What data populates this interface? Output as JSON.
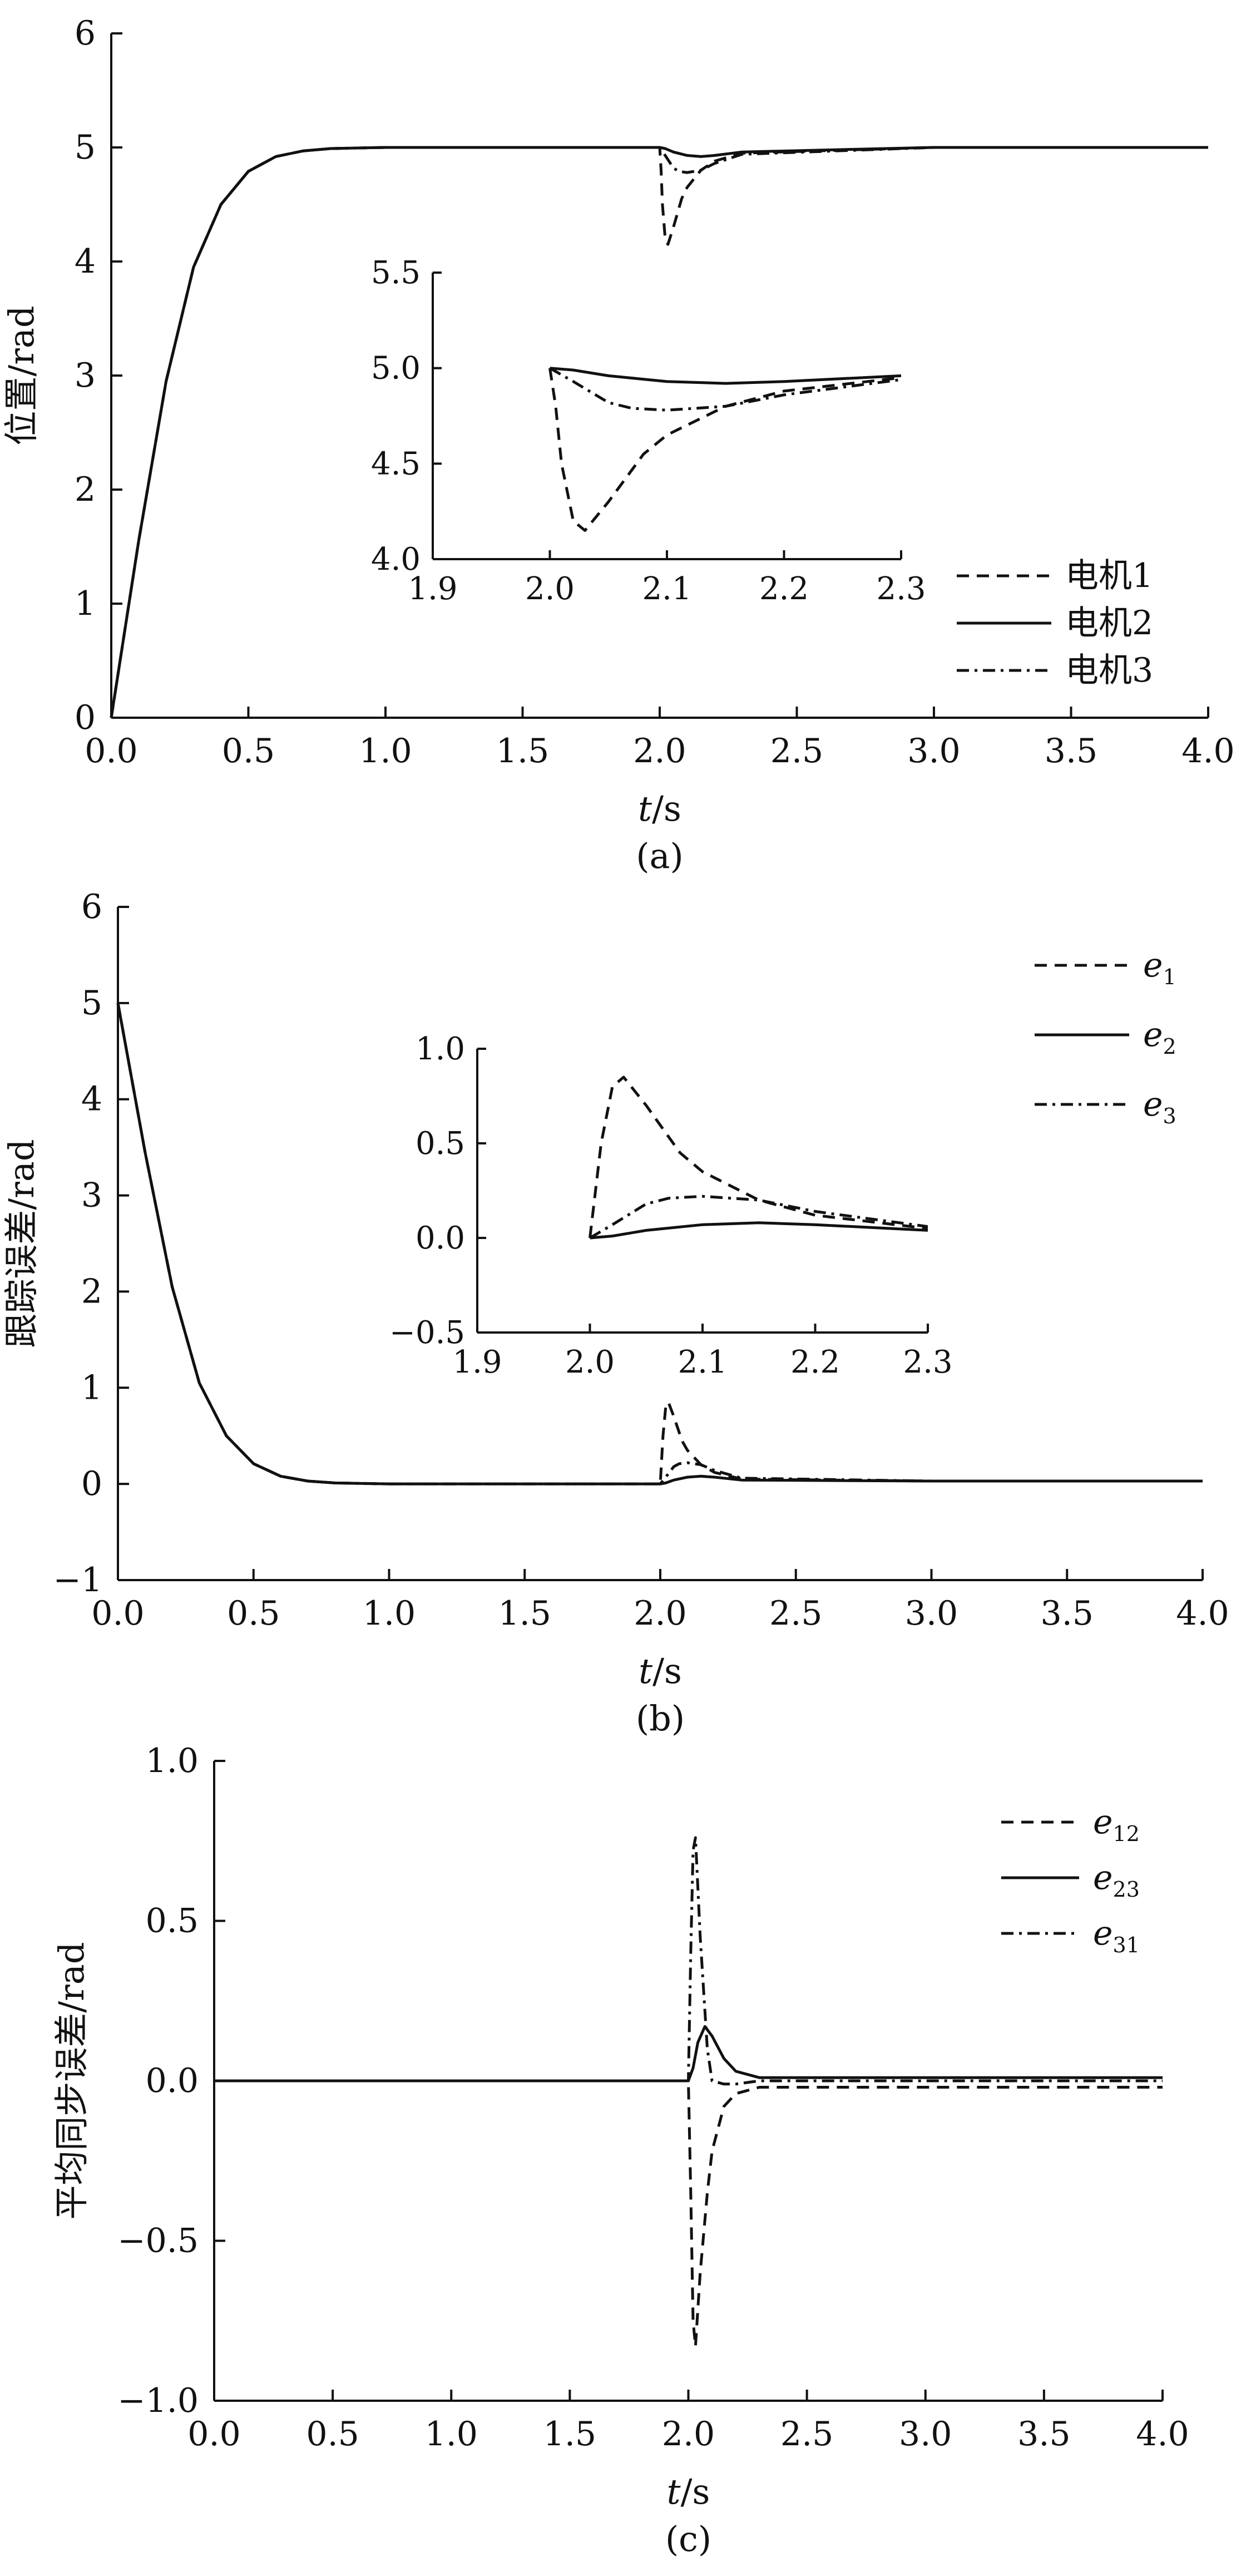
{
  "chart_data": [
    {
      "type": "line",
      "caption": "(a)",
      "xlabel_italic": "t",
      "xlabel_rest": "/s",
      "ylabel": "位置/rad",
      "xlim": [
        0,
        4
      ],
      "ylim": [
        0,
        6
      ],
      "xticks": [
        "0.0",
        "0.5",
        "1.0",
        "1.5",
        "2.0",
        "2.5",
        "3.0",
        "3.5",
        "4.0"
      ],
      "yticks": [
        "0",
        "1",
        "2",
        "3",
        "4",
        "5",
        "6"
      ],
      "legend_position": "right",
      "series": [
        {
          "name": "电机1",
          "style": "dashed",
          "x": [
            0,
            0.1,
            0.2,
            0.3,
            0.4,
            0.5,
            0.6,
            0.7,
            0.8,
            1.0,
            1.5,
            2.0,
            2.005,
            2.01,
            2.02,
            2.03,
            2.05,
            2.08,
            2.1,
            2.15,
            2.2,
            2.3,
            3.0,
            4.0
          ],
          "y": [
            0,
            1.55,
            2.95,
            3.95,
            4.5,
            4.79,
            4.92,
            4.97,
            4.99,
            5.0,
            5.0,
            5.0,
            4.8,
            4.5,
            4.2,
            4.15,
            4.3,
            4.55,
            4.65,
            4.8,
            4.88,
            4.95,
            5.0,
            5.0
          ]
        },
        {
          "name": "电机2",
          "style": "solid",
          "x": [
            0,
            0.1,
            0.2,
            0.3,
            0.4,
            0.5,
            0.6,
            0.7,
            0.8,
            1.0,
            1.5,
            2.0,
            2.02,
            2.05,
            2.1,
            2.15,
            2.2,
            2.3,
            3.0,
            4.0
          ],
          "y": [
            0,
            1.55,
            2.95,
            3.95,
            4.5,
            4.79,
            4.92,
            4.97,
            4.99,
            5.0,
            5.0,
            5.0,
            4.99,
            4.96,
            4.93,
            4.92,
            4.93,
            4.96,
            5.0,
            5.0
          ]
        },
        {
          "name": "电机3",
          "style": "dashdot",
          "x": [
            0,
            0.1,
            0.2,
            0.3,
            0.4,
            0.5,
            0.6,
            0.7,
            0.8,
            1.0,
            1.5,
            2.0,
            2.02,
            2.05,
            2.07,
            2.1,
            2.15,
            2.2,
            2.3,
            3.0,
            4.0
          ],
          "y": [
            0,
            1.55,
            2.95,
            3.95,
            4.5,
            4.79,
            4.92,
            4.97,
            4.99,
            5.0,
            5.0,
            5.0,
            4.93,
            4.82,
            4.79,
            4.78,
            4.8,
            4.86,
            4.94,
            5.0,
            5.0
          ]
        }
      ],
      "inset": {
        "xlim": [
          1.9,
          2.3
        ],
        "ylim": [
          4.0,
          5.5
        ],
        "xticks": [
          "1.9",
          "2.0",
          "2.1",
          "2.2",
          "2.3"
        ],
        "yticks": [
          "4.0",
          "4.5",
          "5.0",
          "5.5"
        ]
      }
    },
    {
      "type": "line",
      "caption": "(b)",
      "xlabel_italic": "t",
      "xlabel_rest": "/s",
      "ylabel": "跟踪误差/rad",
      "xlim": [
        0,
        4
      ],
      "ylim": [
        -1,
        6
      ],
      "xticks": [
        "0.0",
        "0.5",
        "1.0",
        "1.5",
        "2.0",
        "2.5",
        "3.0",
        "3.5",
        "4.0"
      ],
      "yticks": [
        "−1",
        "0",
        "1",
        "2",
        "3",
        "4",
        "5",
        "6"
      ],
      "legend_position": "top-right",
      "series": [
        {
          "name": "e",
          "sub": "1",
          "style": "dashed",
          "x": [
            0,
            0.1,
            0.2,
            0.3,
            0.4,
            0.5,
            0.6,
            0.7,
            0.8,
            1.0,
            1.5,
            2.0,
            2.01,
            2.02,
            2.03,
            2.05,
            2.08,
            2.1,
            2.15,
            2.2,
            2.3,
            3.0,
            4.0
          ],
          "y": [
            5,
            3.45,
            2.05,
            1.05,
            0.5,
            0.21,
            0.08,
            0.03,
            0.01,
            0,
            0,
            0,
            0.5,
            0.8,
            0.85,
            0.7,
            0.45,
            0.35,
            0.2,
            0.12,
            0.05,
            0.03,
            0.03
          ]
        },
        {
          "name": "e",
          "sub": "2",
          "style": "solid",
          "x": [
            0,
            0.1,
            0.2,
            0.3,
            0.4,
            0.5,
            0.6,
            0.7,
            0.8,
            1.0,
            1.5,
            2.0,
            2.02,
            2.05,
            2.1,
            2.15,
            2.2,
            2.3,
            3.0,
            4.0
          ],
          "y": [
            5,
            3.45,
            2.05,
            1.05,
            0.5,
            0.21,
            0.08,
            0.03,
            0.01,
            0,
            0,
            0,
            0.01,
            0.04,
            0.07,
            0.08,
            0.07,
            0.04,
            0.03,
            0.03
          ]
        },
        {
          "name": "e",
          "sub": "3",
          "style": "dashdot",
          "x": [
            0,
            0.1,
            0.2,
            0.3,
            0.4,
            0.5,
            0.6,
            0.7,
            0.8,
            1.0,
            1.5,
            2.0,
            2.02,
            2.05,
            2.07,
            2.1,
            2.15,
            2.2,
            2.3,
            3.0,
            4.0
          ],
          "y": [
            5,
            3.45,
            2.05,
            1.05,
            0.5,
            0.21,
            0.08,
            0.03,
            0.01,
            0,
            0,
            0,
            0.07,
            0.18,
            0.21,
            0.22,
            0.2,
            0.14,
            0.06,
            0.03,
            0.03
          ]
        }
      ],
      "inset": {
        "xlim": [
          1.9,
          2.3
        ],
        "ylim": [
          -0.5,
          1.0
        ],
        "xticks": [
          "1.9",
          "2.0",
          "2.1",
          "2.2",
          "2.3"
        ],
        "yticks": [
          "−0.5",
          "0.0",
          "0.5",
          "1.0"
        ]
      }
    },
    {
      "type": "line",
      "caption": "(c)",
      "xlabel_italic": "t",
      "xlabel_rest": "/s",
      "ylabel": "平均同步误差/rad",
      "xlim": [
        0,
        4
      ],
      "ylim": [
        -1,
        1
      ],
      "xticks": [
        "0.0",
        "0.5",
        "1.0",
        "1.5",
        "2.0",
        "2.5",
        "3.0",
        "3.5",
        "4.0"
      ],
      "yticks": [
        "−1.0",
        "−0.5",
        "0.0",
        "0.5",
        "1.0"
      ],
      "legend_position": "top-right",
      "series": [
        {
          "name": "e",
          "sub": "12",
          "style": "dashed",
          "x": [
            0,
            2.0,
            2.01,
            2.02,
            2.03,
            2.05,
            2.08,
            2.1,
            2.15,
            2.2,
            2.3,
            2.5,
            3.0,
            4.0
          ],
          "y": [
            0,
            0,
            -0.35,
            -0.75,
            -0.83,
            -0.6,
            -0.35,
            -0.22,
            -0.08,
            -0.04,
            -0.02,
            -0.02,
            -0.02,
            -0.02
          ]
        },
        {
          "name": "e",
          "sub": "23",
          "style": "solid",
          "x": [
            0,
            2.0,
            2.02,
            2.04,
            2.07,
            2.1,
            2.15,
            2.2,
            2.3,
            2.5,
            3.0,
            4.0
          ],
          "y": [
            0,
            0,
            0.04,
            0.12,
            0.17,
            0.14,
            0.07,
            0.03,
            0.01,
            0.01,
            0.01,
            0.01
          ]
        },
        {
          "name": "e",
          "sub": "31",
          "style": "dashdot",
          "x": [
            0,
            2.0,
            2.01,
            2.02,
            2.03,
            2.05,
            2.08,
            2.1,
            2.15,
            2.2,
            2.3,
            2.5,
            3.0,
            4.0
          ],
          "y": [
            0,
            0,
            0.4,
            0.72,
            0.76,
            0.45,
            0.1,
            0.0,
            -0.01,
            -0.01,
            0.0,
            0.0,
            0.0,
            0.0
          ]
        }
      ]
    }
  ]
}
